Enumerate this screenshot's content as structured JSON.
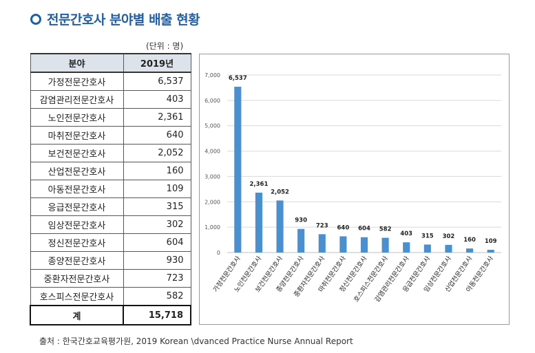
{
  "title": "전문간호사 분야별 배출 현황",
  "unit_label": "(단위 : 명)",
  "table": {
    "headers": [
      "분야",
      "2019년"
    ],
    "rows": [
      {
        "field": "가정전문간호사",
        "value": "6,537"
      },
      {
        "field": "감염관리전문간호사",
        "value": "403"
      },
      {
        "field": "노인전문간호사",
        "value": "2,361"
      },
      {
        "field": "마취전문간호사",
        "value": "640"
      },
      {
        "field": "보건전문간호사",
        "value": "2,052"
      },
      {
        "field": "산업전문간호사",
        "value": "160"
      },
      {
        "field": "아동전문간호사",
        "value": "109"
      },
      {
        "field": "응급전문간호사",
        "value": "315"
      },
      {
        "field": "임상전문간호사",
        "value": "302"
      },
      {
        "field": "정신전문간호사",
        "value": "604"
      },
      {
        "field": "종양전문간호사",
        "value": "930"
      },
      {
        "field": "중환자전문간호사",
        "value": "723"
      },
      {
        "field": "호스피스전문간호사",
        "value": "582"
      }
    ],
    "total": {
      "field": "계",
      "value": "15,718"
    }
  },
  "chart_data": {
    "type": "bar",
    "categories": [
      "가정전문간호사",
      "노인전문간호사",
      "보건전문간호사",
      "종양전문간호사",
      "중환자전문간호사",
      "마취전문간호사",
      "정신전문간호사",
      "호스피스전문간호사",
      "감염관리전문간호사",
      "응급전문간호사",
      "임상전문간호사",
      "산업전문간호사",
      "아동전문간호사"
    ],
    "values": [
      6537,
      2361,
      2052,
      930,
      723,
      640,
      604,
      582,
      403,
      315,
      302,
      160,
      109
    ],
    "data_labels": [
      "6,537",
      "2,361",
      "2,052",
      "930",
      "723",
      "640",
      "604",
      "582",
      "403",
      "315",
      "302",
      "160",
      "109"
    ],
    "y_ticks": [
      0,
      1000,
      2000,
      3000,
      4000,
      5000,
      6000,
      7000
    ],
    "y_tick_labels": [
      "0",
      "1,000",
      "2,000",
      "3,000",
      "4,000",
      "5,000",
      "6,000",
      "7,000"
    ],
    "ylim": [
      0,
      7000
    ],
    "grid": true,
    "bar_color": "#4a8fd0",
    "title": "",
    "xlabel": "",
    "ylabel": ""
  },
  "source": "출처 : 한국간호교육평가원, 2019 Korean \\dvanced Practice Nurse Annual Report"
}
